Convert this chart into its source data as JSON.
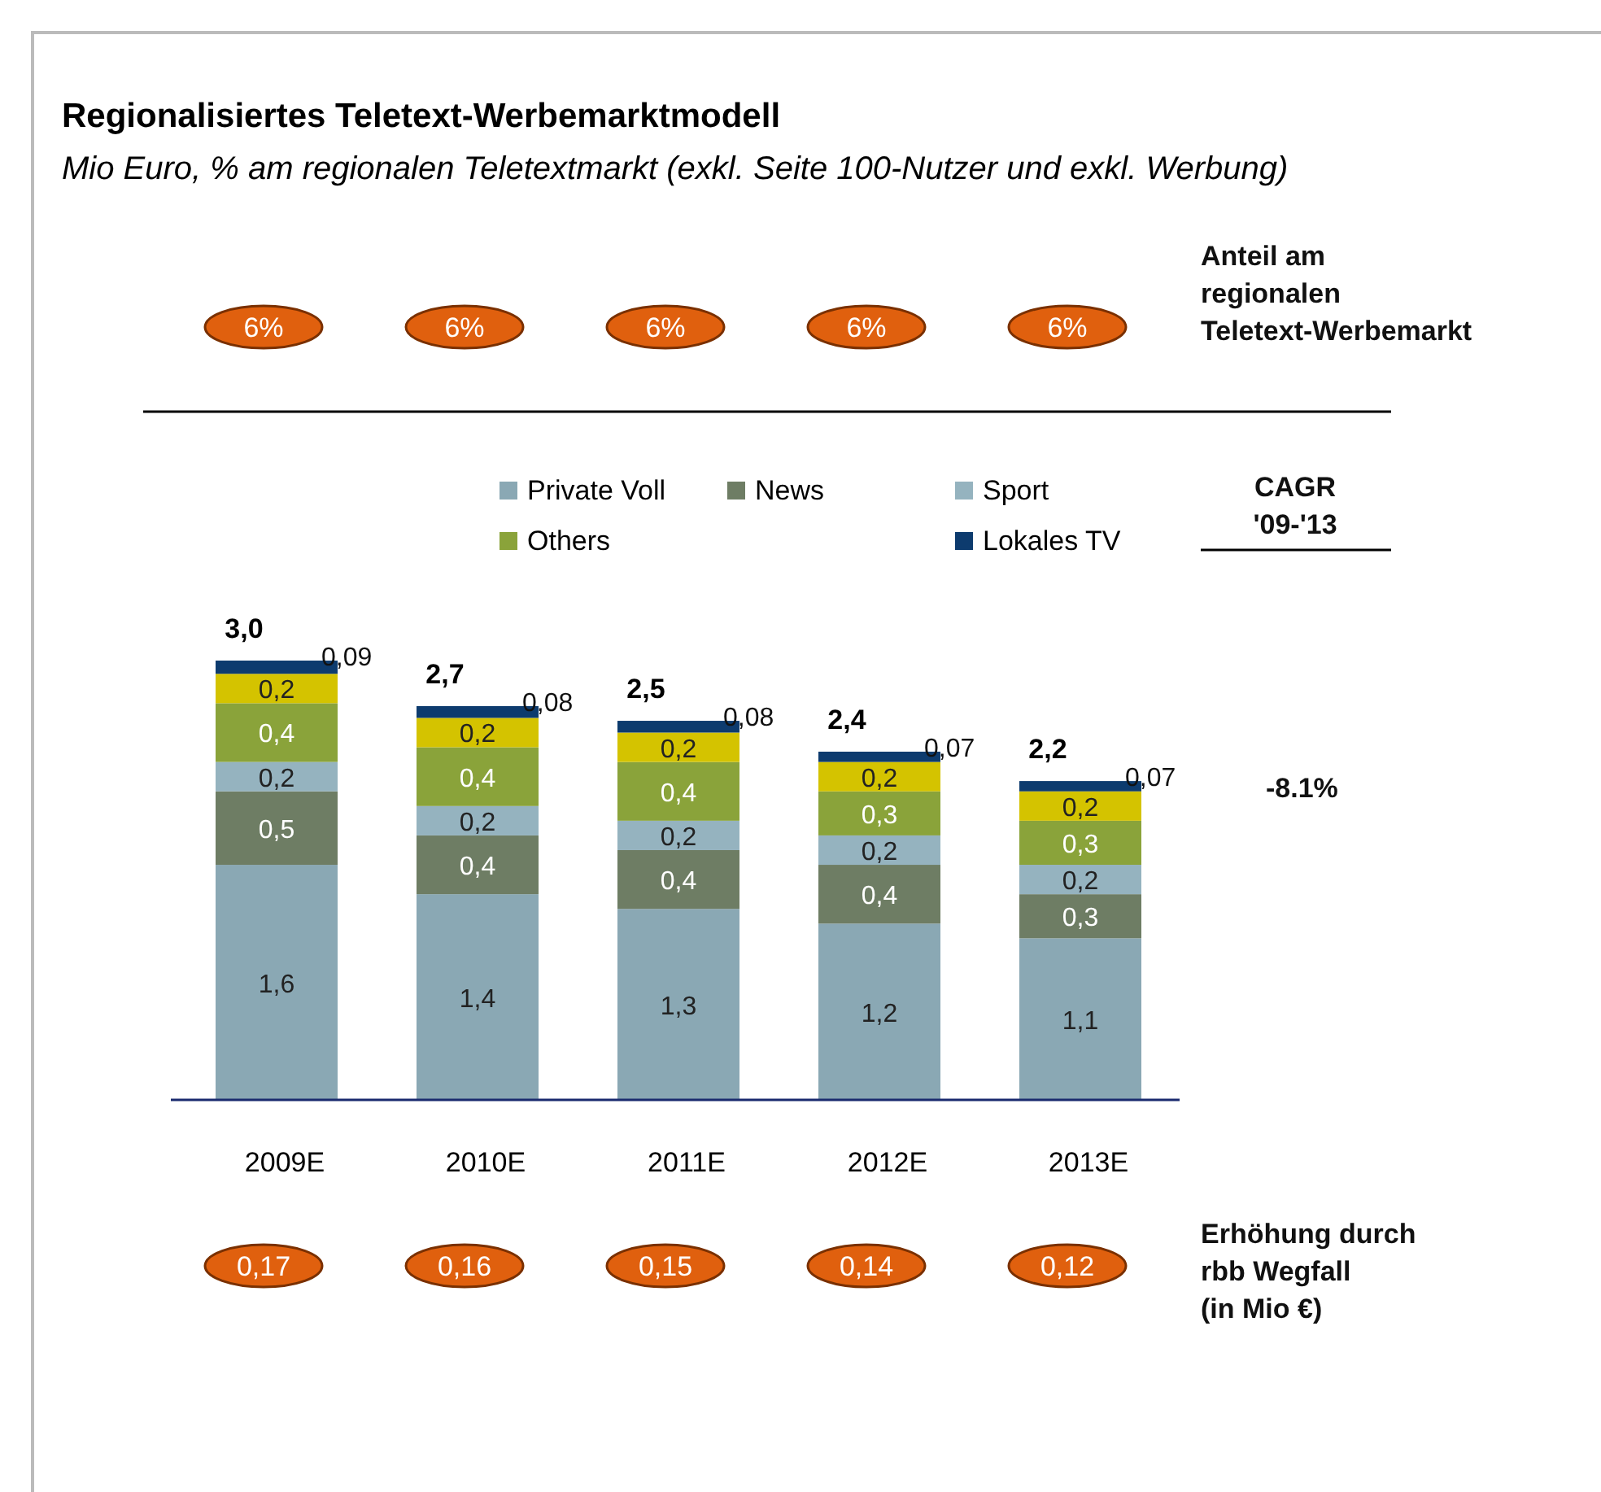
{
  "chart_data": {
    "type": "bar",
    "stacked": true,
    "title": "Regionalisiertes Teletext-Werbemarktmodell",
    "subtitle": "Mio Euro, % am regionalen Teletextmarkt (exkl. Seite 100-Nutzer und exkl. Werbung)",
    "categories": [
      "2009E",
      "2010E",
      "2011E",
      "2012E",
      "2013E"
    ],
    "series": [
      {
        "name": "Private Voll",
        "color": "#8aa8b4",
        "values": [
          1.6,
          1.4,
          1.3,
          1.2,
          1.1
        ],
        "value_labels": [
          "1,6",
          "1,4",
          "1,3",
          "1,2",
          "1,1"
        ]
      },
      {
        "name": "News",
        "color": "#6e7d64",
        "values": [
          0.5,
          0.4,
          0.4,
          0.4,
          0.3
        ],
        "value_labels": [
          "0,5",
          "0,4",
          "0,4",
          "0,4",
          "0,3"
        ]
      },
      {
        "name": "Sport",
        "color": "#95b3bf",
        "values": [
          0.2,
          0.2,
          0.2,
          0.2,
          0.2
        ],
        "value_labels": [
          "0,2",
          "0,2",
          "0,2",
          "0,2",
          "0,2"
        ]
      },
      {
        "name": "Others",
        "color": "#8aa33a",
        "values": [
          0.4,
          0.4,
          0.4,
          0.3,
          0.3
        ],
        "value_labels": [
          "0,4",
          "0,4",
          "0,4",
          "0,3",
          "0,3"
        ]
      },
      {
        "color": "#d4c300",
        "values": [
          0.2,
          0.2,
          0.2,
          0.2,
          0.2
        ],
        "value_labels": [
          "0,2",
          "0,2",
          "0,2",
          "0,2",
          "0,2"
        ]
      },
      {
        "name": "Lokales TV",
        "color": "#0d3b6e",
        "values": [
          0.09,
          0.08,
          0.08,
          0.07,
          0.07
        ],
        "value_labels": [
          "0,09",
          "0,08",
          "0,08",
          "0,07",
          "0,07"
        ]
      }
    ],
    "totals": [
      "3,0",
      "2,7",
      "2,5",
      "2,4",
      "2,2"
    ],
    "legend": "top",
    "annotations": [
      "Anteil am regionalen Teletext-Werbemarkt",
      "CAGR '09-'13",
      "-8.1%",
      "Erhöhung durch rbb Wegfall (in Mio €)",
      "6%",
      "6%",
      "6%",
      "6%",
      "6%",
      "0,17",
      "0,16",
      "0,15",
      "0,14",
      "0,12"
    ]
  }
}
